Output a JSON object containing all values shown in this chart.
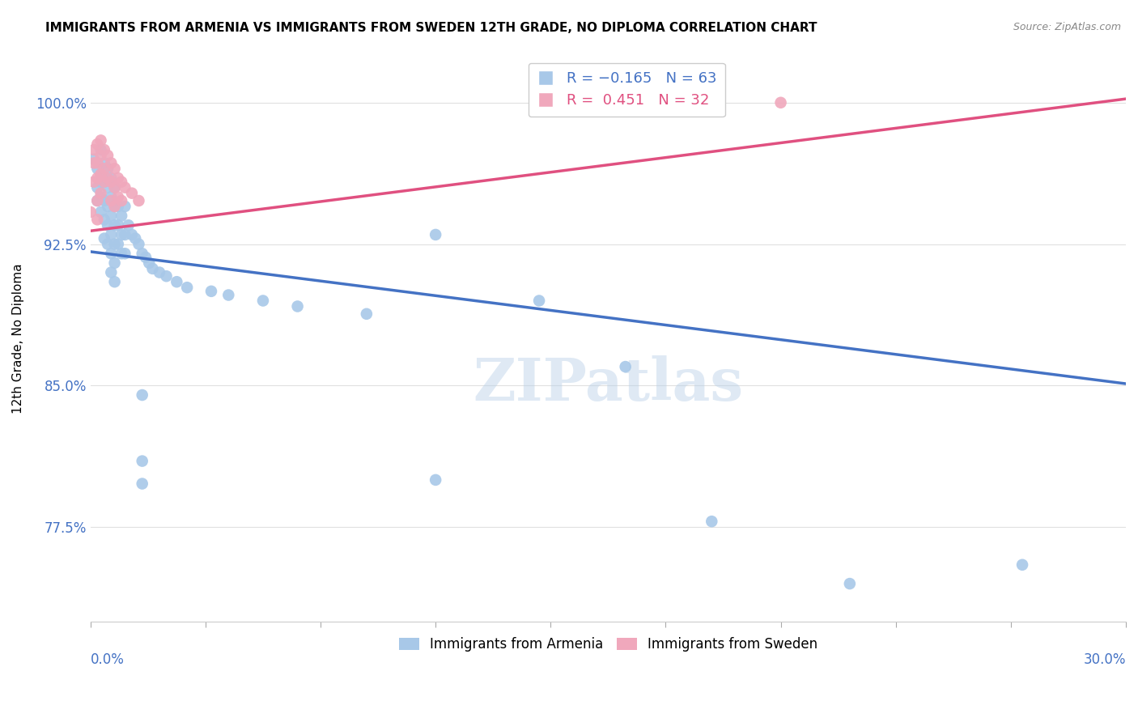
{
  "title": "IMMIGRANTS FROM ARMENIA VS IMMIGRANTS FROM SWEDEN 12TH GRADE, NO DIPLOMA CORRELATION CHART",
  "source": "Source: ZipAtlas.com",
  "ylabel": "12th Grade, No Diploma",
  "ytick_labels": [
    "77.5%",
    "85.0%",
    "92.5%",
    "100.0%"
  ],
  "ytick_values": [
    0.775,
    0.85,
    0.925,
    1.0
  ],
  "xlim": [
    0.0,
    0.3
  ],
  "ylim": [
    0.725,
    1.025
  ],
  "watermark": "ZIPatlas",
  "armenia_color": "#a8c8e8",
  "sweden_color": "#f0a8bc",
  "armenia_line_color": "#4472c4",
  "sweden_line_color": "#e05080",
  "armenia_trend_x": [
    0.0,
    0.3
  ],
  "armenia_trend_y": [
    0.921,
    0.851
  ],
  "sweden_trend_x": [
    0.0,
    0.3
  ],
  "sweden_trend_y": [
    0.932,
    1.002
  ],
  "armenia_scatter": [
    [
      0.001,
      0.97
    ],
    [
      0.002,
      0.965
    ],
    [
      0.002,
      0.955
    ],
    [
      0.002,
      0.948
    ],
    [
      0.003,
      0.975
    ],
    [
      0.003,
      0.962
    ],
    [
      0.003,
      0.958
    ],
    [
      0.003,
      0.95
    ],
    [
      0.003,
      0.942
    ],
    [
      0.004,
      0.968
    ],
    [
      0.004,
      0.958
    ],
    [
      0.004,
      0.948
    ],
    [
      0.004,
      0.938
    ],
    [
      0.004,
      0.928
    ],
    [
      0.005,
      0.965
    ],
    [
      0.005,
      0.955
    ],
    [
      0.005,
      0.945
    ],
    [
      0.005,
      0.935
    ],
    [
      0.005,
      0.925
    ],
    [
      0.006,
      0.96
    ],
    [
      0.006,
      0.95
    ],
    [
      0.006,
      0.94
    ],
    [
      0.006,
      0.93
    ],
    [
      0.006,
      0.92
    ],
    [
      0.006,
      0.91
    ],
    [
      0.007,
      0.955
    ],
    [
      0.007,
      0.945
    ],
    [
      0.007,
      0.935
    ],
    [
      0.007,
      0.925
    ],
    [
      0.007,
      0.915
    ],
    [
      0.007,
      0.905
    ],
    [
      0.008,
      0.945
    ],
    [
      0.008,
      0.935
    ],
    [
      0.008,
      0.925
    ],
    [
      0.009,
      0.94
    ],
    [
      0.009,
      0.93
    ],
    [
      0.009,
      0.92
    ],
    [
      0.01,
      0.945
    ],
    [
      0.01,
      0.93
    ],
    [
      0.01,
      0.92
    ],
    [
      0.011,
      0.935
    ],
    [
      0.012,
      0.93
    ],
    [
      0.013,
      0.928
    ],
    [
      0.014,
      0.925
    ],
    [
      0.015,
      0.92
    ],
    [
      0.016,
      0.918
    ],
    [
      0.017,
      0.915
    ],
    [
      0.018,
      0.912
    ],
    [
      0.02,
      0.91
    ],
    [
      0.022,
      0.908
    ],
    [
      0.025,
      0.905
    ],
    [
      0.028,
      0.902
    ],
    [
      0.035,
      0.9
    ],
    [
      0.04,
      0.898
    ],
    [
      0.05,
      0.895
    ],
    [
      0.06,
      0.892
    ],
    [
      0.08,
      0.888
    ],
    [
      0.1,
      0.93
    ],
    [
      0.13,
      0.895
    ],
    [
      0.155,
      0.86
    ],
    [
      0.18,
      0.778
    ],
    [
      0.22,
      0.745
    ],
    [
      0.27,
      0.755
    ],
    [
      0.1,
      0.8
    ],
    [
      0.015,
      0.845
    ],
    [
      0.015,
      0.81
    ],
    [
      0.015,
      0.798
    ]
  ],
  "sweden_scatter": [
    [
      0.0,
      0.942
    ],
    [
      0.001,
      0.975
    ],
    [
      0.001,
      0.968
    ],
    [
      0.001,
      0.958
    ],
    [
      0.002,
      0.978
    ],
    [
      0.002,
      0.968
    ],
    [
      0.002,
      0.96
    ],
    [
      0.002,
      0.948
    ],
    [
      0.002,
      0.938
    ],
    [
      0.003,
      0.98
    ],
    [
      0.003,
      0.972
    ],
    [
      0.003,
      0.962
    ],
    [
      0.003,
      0.952
    ],
    [
      0.004,
      0.975
    ],
    [
      0.004,
      0.965
    ],
    [
      0.004,
      0.958
    ],
    [
      0.005,
      0.972
    ],
    [
      0.005,
      0.96
    ],
    [
      0.006,
      0.968
    ],
    [
      0.006,
      0.958
    ],
    [
      0.006,
      0.948
    ],
    [
      0.007,
      0.965
    ],
    [
      0.007,
      0.955
    ],
    [
      0.007,
      0.945
    ],
    [
      0.008,
      0.96
    ],
    [
      0.008,
      0.95
    ],
    [
      0.009,
      0.958
    ],
    [
      0.009,
      0.948
    ],
    [
      0.01,
      0.955
    ],
    [
      0.012,
      0.952
    ],
    [
      0.014,
      0.948
    ],
    [
      0.2,
      1.0
    ]
  ]
}
